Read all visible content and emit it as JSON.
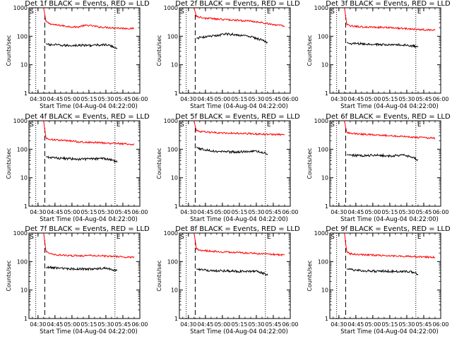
{
  "chart_data": [
    {
      "type": "line",
      "title": "Det 1f BLACK = Events, RED = LLD",
      "xlabel": "Start Time (04-Aug-04 04:22:00)",
      "ylabel": "Counts/sec",
      "log_y": true,
      "ylim": [
        1,
        1000
      ],
      "xlim": [
        "04:22",
        "06:00"
      ],
      "x_ticks": [
        "04:30",
        "04:45",
        "05:00",
        "05:15",
        "05:30",
        "05:45",
        "06:00"
      ],
      "y_ticks": [
        "1",
        "10",
        "100",
        "1000"
      ],
      "start_marker": "S",
      "end_marker": "E",
      "dotted_lines": [
        "04:28",
        "05:38"
      ],
      "dashed_lines": [
        "04:36"
      ],
      "series": [
        {
          "color": "#ff0000",
          "x": [
            "04:35",
            "04:36",
            "04:37",
            "04:40",
            "04:45",
            "04:50",
            "04:55",
            "05:00",
            "05:05",
            "05:10",
            "05:15",
            "05:20",
            "05:25",
            "05:30",
            "05:35",
            "05:40",
            "05:45",
            "05:50",
            "05:55"
          ],
          "values": [
            1000,
            580,
            330,
            280,
            250,
            240,
            225,
            215,
            210,
            235,
            240,
            225,
            210,
            205,
            200,
            195,
            190,
            188,
            185
          ]
        },
        {
          "color": "#000000",
          "x": [
            "04:37",
            "04:40",
            "04:45",
            "04:50",
            "04:55",
            "05:00",
            "05:05",
            "05:10",
            "05:15",
            "05:20",
            "05:25",
            "05:30",
            "05:35",
            "05:40"
          ],
          "values": [
            55,
            50,
            50,
            48,
            47,
            48,
            48,
            48,
            48,
            48,
            50,
            50,
            45,
            38
          ]
        }
      ]
    },
    {
      "type": "line",
      "title": "Det 2f BLACK = Events, RED = LLD",
      "xlabel": "Start Time (04-Aug-04 04:22:00)",
      "ylabel": "Counts/sec",
      "log_y": true,
      "ylim": [
        1,
        1000
      ],
      "xlim": [
        "04:22",
        "06:00"
      ],
      "x_ticks": [
        "04:30",
        "04:45",
        "05:00",
        "05:15",
        "05:30",
        "05:45",
        "06:00"
      ],
      "y_ticks": [
        "1",
        "10",
        "100",
        "1000"
      ],
      "start_marker": "S",
      "end_marker": "E",
      "dotted_lines": [
        "04:28",
        "05:38"
      ],
      "dashed_lines": [
        "04:36"
      ],
      "series": [
        {
          "color": "#ff0000",
          "x": [
            "04:35",
            "04:36",
            "04:37",
            "04:40",
            "04:45",
            "04:50",
            "04:55",
            "05:00",
            "05:05",
            "05:10",
            "05:15",
            "05:20",
            "05:25",
            "05:30",
            "05:35",
            "05:40",
            "05:45",
            "05:50",
            "05:55"
          ],
          "values": [
            1000,
            700,
            520,
            460,
            430,
            420,
            400,
            390,
            380,
            370,
            360,
            350,
            340,
            320,
            300,
            280,
            260,
            240,
            230
          ]
        },
        {
          "color": "#000000",
          "x": [
            "04:37",
            "04:40",
            "04:45",
            "04:50",
            "04:55",
            "05:00",
            "05:05",
            "05:10",
            "05:15",
            "05:20",
            "05:25",
            "05:30",
            "05:35",
            "05:40"
          ],
          "values": [
            85,
            90,
            95,
            100,
            105,
            115,
            120,
            115,
            110,
            105,
            95,
            85,
            75,
            60
          ]
        }
      ]
    },
    {
      "type": "line",
      "title": "Det 3f BLACK = Events, RED = LLD",
      "xlabel": "Start Time (04-Aug-04 04:22:00)",
      "ylabel": "Counts/sec",
      "log_y": true,
      "ylim": [
        1,
        1000
      ],
      "xlim": [
        "04:22",
        "06:00"
      ],
      "x_ticks": [
        "04:30",
        "04:45",
        "05:00",
        "05:15",
        "05:30",
        "05:45",
        "06:00"
      ],
      "y_ticks": [
        "1",
        "10",
        "100",
        "1000"
      ],
      "start_marker": "S",
      "end_marker": "E",
      "dotted_lines": [
        "04:28",
        "05:38"
      ],
      "dashed_lines": [
        "04:36"
      ],
      "series": [
        {
          "color": "#ff0000",
          "x": [
            "04:35",
            "04:36",
            "04:37",
            "04:40",
            "04:45",
            "04:50",
            "04:55",
            "05:00",
            "05:05",
            "05:10",
            "05:15",
            "05:20",
            "05:25",
            "05:30",
            "05:35",
            "05:40",
            "05:45",
            "05:50",
            "05:55"
          ],
          "values": [
            1000,
            500,
            260,
            230,
            220,
            215,
            210,
            210,
            205,
            205,
            200,
            195,
            190,
            185,
            180,
            175,
            170,
            168,
            165
          ]
        },
        {
          "color": "#000000",
          "x": [
            "04:37",
            "04:40",
            "04:45",
            "04:50",
            "04:55",
            "05:00",
            "05:05",
            "05:10",
            "05:15",
            "05:20",
            "05:25",
            "05:30",
            "05:35",
            "05:40"
          ],
          "values": [
            60,
            55,
            55,
            54,
            52,
            52,
            52,
            50,
            50,
            50,
            50,
            48,
            46,
            42
          ]
        }
      ]
    },
    {
      "type": "line",
      "title": "Det 4f BLACK = Events, RED = LLD",
      "xlabel": "Start Time (04-Aug-04 04:22:00)",
      "ylabel": "Counts/sec",
      "log_y": true,
      "ylim": [
        1,
        1000
      ],
      "xlim": [
        "04:22",
        "06:00"
      ],
      "x_ticks": [
        "04:30",
        "04:45",
        "05:00",
        "05:15",
        "05:30",
        "05:45",
        "06:00"
      ],
      "y_ticks": [
        "1",
        "10",
        "100",
        "1000"
      ],
      "start_marker": "S",
      "end_marker": "E",
      "dotted_lines": [
        "04:28",
        "05:38"
      ],
      "dashed_lines": [
        "04:36"
      ],
      "series": [
        {
          "color": "#ff0000",
          "x": [
            "04:35",
            "04:36",
            "04:37",
            "04:40",
            "04:45",
            "04:50",
            "04:55",
            "05:00",
            "05:05",
            "05:10",
            "05:15",
            "05:20",
            "05:25",
            "05:30",
            "05:35",
            "05:40",
            "05:45",
            "05:50",
            "05:55"
          ],
          "values": [
            1000,
            500,
            250,
            220,
            215,
            205,
            200,
            195,
            185,
            180,
            175,
            175,
            170,
            165,
            160,
            160,
            155,
            152,
            150
          ]
        },
        {
          "color": "#000000",
          "x": [
            "04:37",
            "04:40",
            "04:45",
            "04:50",
            "04:55",
            "05:00",
            "05:05",
            "05:10",
            "05:15",
            "05:20",
            "05:25",
            "05:30",
            "05:35",
            "05:40"
          ],
          "values": [
            55,
            52,
            50,
            48,
            47,
            46,
            45,
            45,
            45,
            46,
            48,
            47,
            42,
            35
          ]
        }
      ]
    },
    {
      "type": "line",
      "title": "Det 5f BLACK = Events, RED = LLD",
      "xlabel": "Start Time (04-Aug-04 04:22:00)",
      "ylabel": "Counts/sec",
      "log_y": true,
      "ylim": [
        1,
        1000
      ],
      "xlim": [
        "04:22",
        "06:00"
      ],
      "x_ticks": [
        "04:30",
        "04:45",
        "05:00",
        "05:15",
        "05:30",
        "05:45",
        "06:00"
      ],
      "y_ticks": [
        "1",
        "10",
        "100",
        "1000"
      ],
      "start_marker": "S",
      "end_marker": "E",
      "dotted_lines": [
        "04:28",
        "05:38"
      ],
      "dashed_lines": [
        "04:36"
      ],
      "series": [
        {
          "color": "#ff0000",
          "x": [
            "04:35",
            "04:36",
            "04:37",
            "04:40",
            "04:45",
            "04:50",
            "04:55",
            "05:00",
            "05:05",
            "05:10",
            "05:15",
            "05:20",
            "05:25",
            "05:30",
            "05:35",
            "05:40",
            "05:45",
            "05:50",
            "05:55"
          ],
          "values": [
            1000,
            650,
            460,
            420,
            400,
            390,
            380,
            375,
            370,
            365,
            360,
            355,
            350,
            345,
            340,
            335,
            330,
            330,
            325
          ]
        },
        {
          "color": "#000000",
          "x": [
            "04:37",
            "04:40",
            "04:45",
            "04:50",
            "04:55",
            "05:00",
            "05:05",
            "05:10",
            "05:15",
            "05:20",
            "05:25",
            "05:30",
            "05:35",
            "05:40"
          ],
          "values": [
            120,
            105,
            95,
            90,
            85,
            85,
            82,
            80,
            80,
            82,
            85,
            85,
            78,
            68
          ]
        }
      ]
    },
    {
      "type": "line",
      "title": "Det 6f BLACK = Events, RED = LLD",
      "xlabel": "Start Time (04-Aug-04 04:22:00)",
      "ylabel": "Counts/sec",
      "log_y": true,
      "ylim": [
        1,
        1000
      ],
      "xlim": [
        "04:22",
        "06:00"
      ],
      "x_ticks": [
        "04:30",
        "04:45",
        "05:00",
        "05:15",
        "05:30",
        "05:45",
        "06:00"
      ],
      "y_ticks": [
        "1",
        "10",
        "100",
        "1000"
      ],
      "start_marker": "S",
      "end_marker": "E",
      "dotted_lines": [
        "04:28",
        "05:38"
      ],
      "dashed_lines": [
        "04:36"
      ],
      "series": [
        {
          "color": "#ff0000",
          "x": [
            "04:35",
            "04:36",
            "04:37",
            "04:40",
            "04:45",
            "04:50",
            "04:55",
            "05:00",
            "05:05",
            "05:10",
            "05:15",
            "05:20",
            "05:25",
            "05:30",
            "05:35",
            "05:40",
            "05:45",
            "05:50",
            "05:55"
          ],
          "values": [
            1000,
            600,
            400,
            360,
            350,
            340,
            335,
            330,
            320,
            310,
            300,
            290,
            285,
            275,
            265,
            260,
            255,
            250,
            245
          ]
        },
        {
          "color": "#000000",
          "x": [
            "04:37",
            "04:40",
            "04:45",
            "04:50",
            "04:55",
            "05:00",
            "05:05",
            "05:10",
            "05:15",
            "05:20",
            "05:25",
            "05:30",
            "05:35",
            "05:40"
          ],
          "values": [
            65,
            62,
            60,
            60,
            60,
            62,
            62,
            60,
            58,
            60,
            62,
            60,
            52,
            42
          ]
        }
      ]
    },
    {
      "type": "line",
      "title": "Det 7f BLACK = Events, RED = LLD",
      "xlabel": "Start Time (04-Aug-04 04:22:00)",
      "ylabel": "Counts/sec",
      "log_y": true,
      "ylim": [
        1,
        1000
      ],
      "xlim": [
        "04:22",
        "06:00"
      ],
      "x_ticks": [
        "04:30",
        "04:45",
        "05:00",
        "05:15",
        "05:30",
        "05:45",
        "06:00"
      ],
      "y_ticks": [
        "1",
        "10",
        "100",
        "1000"
      ],
      "start_marker": "S",
      "end_marker": "E",
      "dotted_lines": [
        "04:28",
        "05:38"
      ],
      "dashed_lines": [
        "04:36"
      ],
      "series": [
        {
          "color": "#ff0000",
          "x": [
            "04:35",
            "04:36",
            "04:37",
            "04:40",
            "04:45",
            "04:50",
            "04:55",
            "05:00",
            "05:05",
            "05:10",
            "05:15",
            "05:20",
            "05:25",
            "05:30",
            "05:35",
            "05:40",
            "05:45",
            "05:50",
            "05:55"
          ],
          "values": [
            1000,
            500,
            230,
            190,
            175,
            170,
            165,
            160,
            160,
            160,
            165,
            165,
            160,
            155,
            150,
            148,
            145,
            142,
            140
          ]
        },
        {
          "color": "#000000",
          "x": [
            "04:37",
            "04:40",
            "04:45",
            "04:50",
            "04:55",
            "05:00",
            "05:05",
            "05:10",
            "05:15",
            "05:20",
            "05:25",
            "05:30",
            "05:35",
            "05:40"
          ],
          "values": [
            60,
            62,
            60,
            58,
            55,
            55,
            55,
            55,
            55,
            56,
            58,
            58,
            52,
            48
          ]
        }
      ]
    },
    {
      "type": "line",
      "title": "Det 8f BLACK = Events, RED = LLD",
      "xlabel": "Start Time (04-Aug-04 04:22:00)",
      "ylabel": "Counts/sec",
      "log_y": true,
      "ylim": [
        1,
        1000
      ],
      "xlim": [
        "04:22",
        "06:00"
      ],
      "x_ticks": [
        "04:30",
        "04:45",
        "05:00",
        "05:15",
        "05:30",
        "05:45",
        "06:00"
      ],
      "y_ticks": [
        "1",
        "10",
        "100",
        "1000"
      ],
      "start_marker": "S",
      "end_marker": "E",
      "dotted_lines": [
        "04:28",
        "05:38"
      ],
      "dashed_lines": [
        "04:36"
      ],
      "series": [
        {
          "color": "#ff0000",
          "x": [
            "04:35",
            "04:36",
            "04:37",
            "04:40",
            "04:45",
            "04:50",
            "04:55",
            "05:00",
            "05:05",
            "05:10",
            "05:15",
            "05:20",
            "05:25",
            "05:30",
            "05:35",
            "05:40",
            "05:45",
            "05:50",
            "05:55"
          ],
          "values": [
            1000,
            550,
            280,
            250,
            240,
            230,
            225,
            220,
            215,
            210,
            205,
            200,
            195,
            190,
            185,
            180,
            178,
            175,
            170
          ]
        },
        {
          "color": "#000000",
          "x": [
            "04:37",
            "04:40",
            "04:45",
            "04:50",
            "04:55",
            "05:00",
            "05:05",
            "05:10",
            "05:15",
            "05:20",
            "05:25",
            "05:30",
            "05:35",
            "05:40"
          ],
          "values": [
            55,
            52,
            50,
            48,
            47,
            47,
            47,
            46,
            45,
            45,
            46,
            45,
            40,
            33
          ]
        }
      ]
    },
    {
      "type": "line",
      "title": "Det 9f BLACK = Events, RED = LLD",
      "xlabel": "Start Time (04-Aug-04 04:22:00)",
      "ylabel": "Counts/sec",
      "log_y": true,
      "ylim": [
        1,
        1000
      ],
      "xlim": [
        "04:22",
        "06:00"
      ],
      "x_ticks": [
        "04:30",
        "04:45",
        "05:00",
        "05:15",
        "05:30",
        "05:45",
        "06:00"
      ],
      "y_ticks": [
        "1",
        "10",
        "100",
        "1000"
      ],
      "start_marker": "S",
      "end_marker": "E",
      "dotted_lines": [
        "04:28",
        "05:38"
      ],
      "dashed_lines": [
        "04:36"
      ],
      "series": [
        {
          "color": "#ff0000",
          "x": [
            "04:35",
            "04:36",
            "04:37",
            "04:40",
            "04:45",
            "04:50",
            "04:55",
            "05:00",
            "05:05",
            "05:10",
            "05:15",
            "05:20",
            "05:25",
            "05:30",
            "05:35",
            "05:40",
            "05:45",
            "05:50",
            "05:55"
          ],
          "values": [
            1000,
            450,
            220,
            190,
            180,
            175,
            170,
            168,
            165,
            162,
            160,
            158,
            155,
            152,
            150,
            148,
            145,
            142,
            140
          ]
        },
        {
          "color": "#000000",
          "x": [
            "04:37",
            "04:40",
            "04:45",
            "04:50",
            "04:55",
            "05:00",
            "05:05",
            "05:10",
            "05:15",
            "05:20",
            "05:25",
            "05:30",
            "05:35",
            "05:40"
          ],
          "values": [
            55,
            52,
            50,
            48,
            47,
            46,
            46,
            46,
            45,
            45,
            46,
            45,
            42,
            36
          ]
        }
      ]
    }
  ]
}
